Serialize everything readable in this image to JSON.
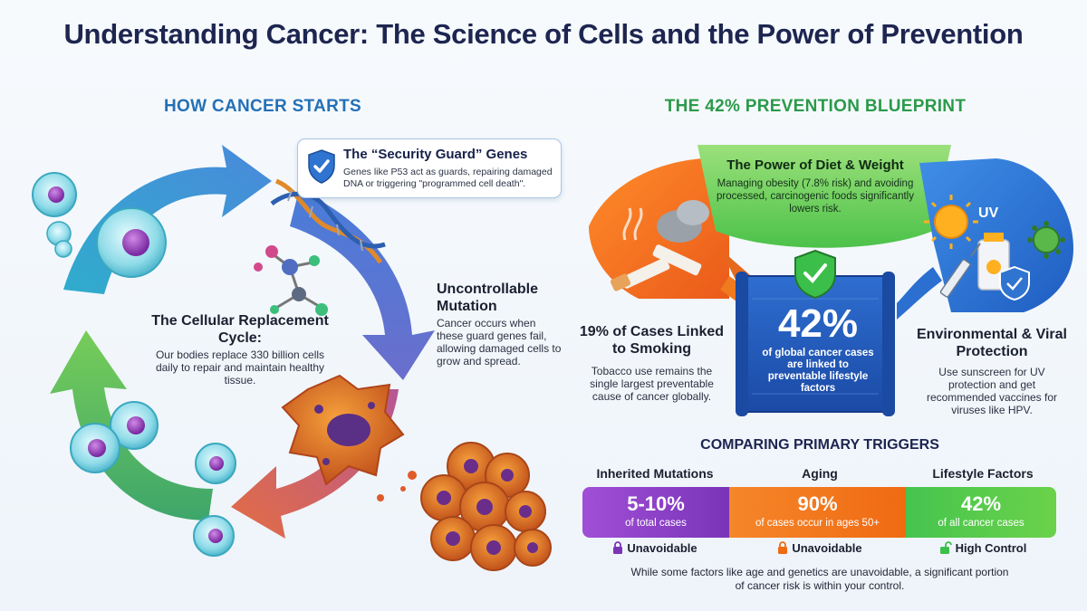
{
  "title": "Understanding Cancer: The Science of Cells and the Power of Prevention",
  "left_section": {
    "heading": "HOW CANCER STARTS",
    "guard_card": {
      "title": "The “Security Guard” Genes",
      "desc": "Genes like P53 act as guards, repairing damaged DNA or triggering \"programmed cell death\"."
    },
    "cycle": {
      "title": "The Cellular Replacement Cycle:",
      "desc": "Our bodies replace 330 billion cells daily to repair and maintain healthy tissue."
    },
    "mutation": {
      "title": "Uncontrollable Mutation",
      "desc": "Cancer occurs when these guard genes fail, allowing damaged cells to grow and spread."
    }
  },
  "right_section": {
    "heading": "THE 42% PREVENTION BLUEPRINT",
    "diet": {
      "title": "The Power of Diet & Weight",
      "desc": "Managing obesity (7.8% risk) and avoiding processed, carcinogenic foods significantly lowers risk."
    },
    "smoking": {
      "title": "19% of Cases Linked to Smoking",
      "desc": "Tobacco use remains the single largest preventable cause of cancer globally."
    },
    "environment": {
      "title": "Environmental & Viral Protection",
      "desc": "Use sunscreen for UV protection and get recommended vaccines for viruses like HPV.",
      "uv_label": "UV"
    },
    "center": {
      "value": "42%",
      "desc": "of global cancer cases are linked to preventable lifestyle factors"
    }
  },
  "comparison": {
    "heading": "COMPARING PRIMARY TRIGGERS",
    "columns": [
      {
        "label": "Inherited Mutations",
        "value": "5-10%",
        "sub": "of total cases",
        "tag": "Unavoidable",
        "color": "#8a3fc8"
      },
      {
        "label": "Aging",
        "value": "90%",
        "sub": "of cases occur in ages 50+",
        "tag": "Unavoidable",
        "color": "#f07a1e"
      },
      {
        "label": "Lifestyle Factors",
        "value": "42%",
        "sub": "of all cancer cases",
        "tag": "High Control",
        "color": "#3cbf4a"
      }
    ],
    "footer": "While some factors like age and genetics are unavoidable, a significant portion of cancer risk is within your control."
  },
  "colors": {
    "title": "#1d2550",
    "blue_head": "#2470b5",
    "green_head": "#2b9a4a"
  }
}
